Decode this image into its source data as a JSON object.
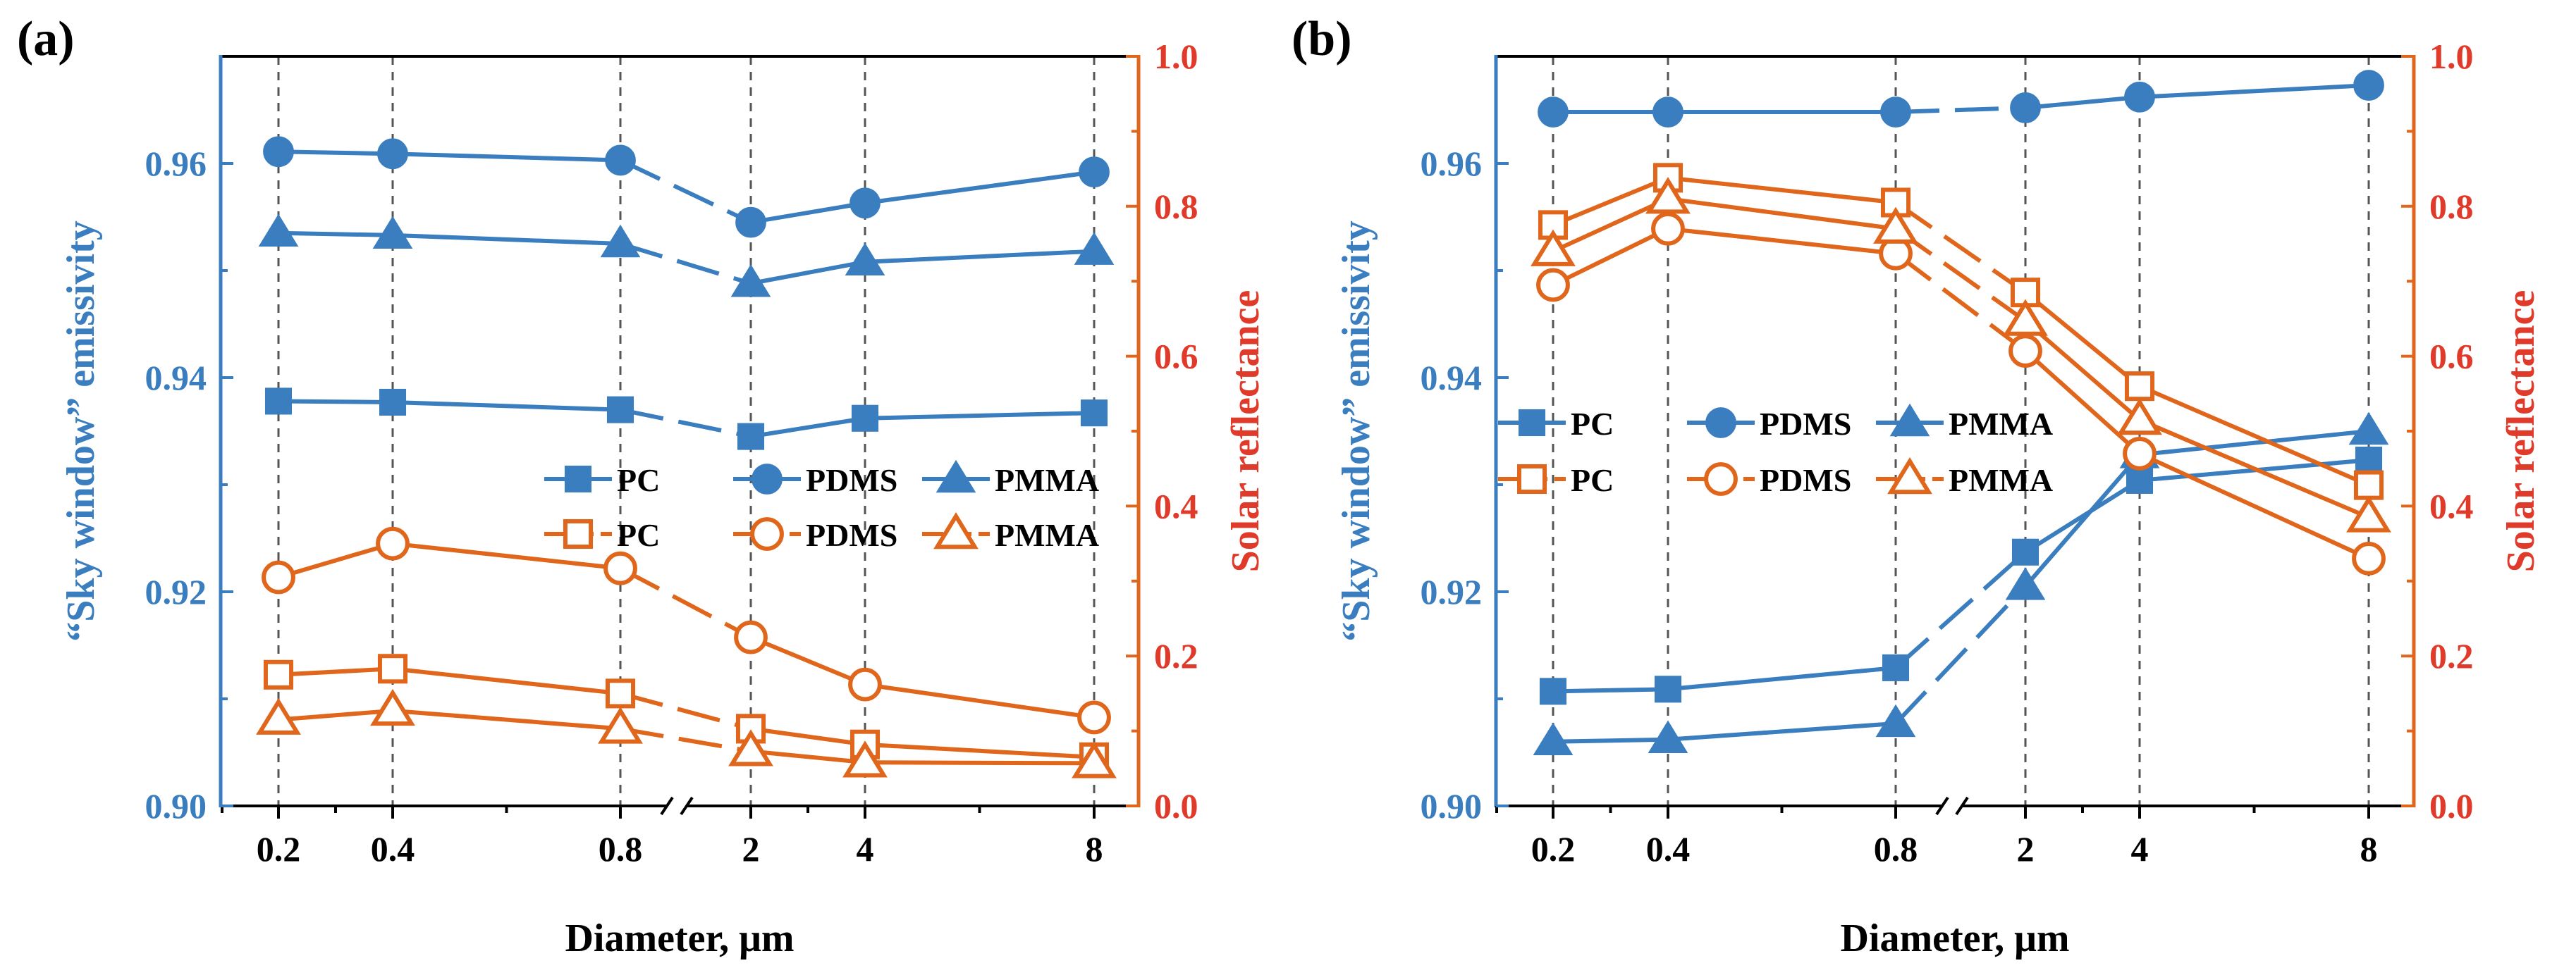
{
  "colors": {
    "emissivity": "#3a7ebf",
    "reflectance": "#e0661c",
    "right_axis": "#e03a2a",
    "grid": "#555555"
  },
  "chart_data": [
    {
      "panel_label": "(a)",
      "type": "line",
      "categories": [
        "0.2",
        "0.4",
        "0.8",
        "2",
        "4",
        "8"
      ],
      "xlabel": "Diameter, μm",
      "ylabel_left": "“Sky window” emissivity",
      "ylabel_right": "Solar reflectance",
      "ylim_left": [
        0.9,
        0.97
      ],
      "ylim_right": [
        0.0,
        1.0
      ],
      "left_ticks": [
        "0.90",
        "0.92",
        "0.94",
        "0.96"
      ],
      "right_ticks": [
        "0.0",
        "0.2",
        "0.4",
        "0.6",
        "0.8",
        "1.0"
      ],
      "legend_position": "center-right",
      "series": [
        {
          "name": "PC",
          "axis": "left",
          "marker": "square",
          "filled": true,
          "values": [
            0.9378,
            0.9377,
            0.937,
            0.9345,
            0.9362,
            0.9367
          ]
        },
        {
          "name": "PDMS",
          "axis": "left",
          "marker": "circle",
          "filled": true,
          "values": [
            0.9611,
            0.9609,
            0.9603,
            0.9545,
            0.9563,
            0.9592
          ]
        },
        {
          "name": "PMMA",
          "axis": "left",
          "marker": "triangle",
          "filled": true,
          "values": [
            0.9535,
            0.9533,
            0.9525,
            0.9488,
            0.9508,
            0.9518
          ]
        },
        {
          "name": "PC",
          "axis": "right",
          "marker": "square",
          "filled": false,
          "values": [
            0.175,
            0.183,
            0.15,
            0.103,
            0.082,
            0.065
          ]
        },
        {
          "name": "PDMS",
          "axis": "right",
          "marker": "circle",
          "filled": false,
          "values": [
            0.305,
            0.35,
            0.317,
            0.225,
            0.162,
            0.118
          ]
        },
        {
          "name": "PMMA",
          "axis": "right",
          "marker": "triangle",
          "filled": false,
          "values": [
            0.115,
            0.127,
            0.103,
            0.073,
            0.058,
            0.057
          ]
        }
      ]
    },
    {
      "panel_label": "(b)",
      "type": "line",
      "categories": [
        "0.2",
        "0.4",
        "0.8",
        "2",
        "4",
        "8"
      ],
      "xlabel": "Diameter, μm",
      "ylabel_left": "“Sky window” emissivity",
      "ylabel_right": "Solar reflectance",
      "ylim_left": [
        0.9,
        0.97
      ],
      "ylim_right": [
        0.0,
        1.0
      ],
      "left_ticks": [
        "0.90",
        "0.92",
        "0.94",
        "0.96"
      ],
      "right_ticks": [
        "0.0",
        "0.2",
        "0.4",
        "0.6",
        "0.8",
        "1.0"
      ],
      "legend_position": "center-left",
      "series": [
        {
          "name": "PC",
          "axis": "left",
          "marker": "square",
          "filled": true,
          "values": [
            0.9107,
            0.9109,
            0.9129,
            0.9237,
            0.9304,
            0.9323
          ]
        },
        {
          "name": "PDMS",
          "axis": "left",
          "marker": "circle",
          "filled": true,
          "values": [
            0.9648,
            0.9648,
            0.9648,
            0.9652,
            0.9662,
            0.9673
          ]
        },
        {
          "name": "PMMA",
          "axis": "left",
          "marker": "triangle",
          "filled": true,
          "values": [
            0.906,
            0.9062,
            0.9077,
            0.9205,
            0.9328,
            0.935
          ]
        },
        {
          "name": "PC",
          "axis": "right",
          "marker": "square",
          "filled": false,
          "values": [
            0.775,
            0.838,
            0.805,
            0.685,
            0.56,
            0.428
          ]
        },
        {
          "name": "PDMS",
          "axis": "right",
          "marker": "circle",
          "filled": false,
          "values": [
            0.695,
            0.77,
            0.737,
            0.607,
            0.47,
            0.33
          ]
        },
        {
          "name": "PMMA",
          "axis": "right",
          "marker": "triangle",
          "filled": false,
          "values": [
            0.74,
            0.81,
            0.77,
            0.647,
            0.515,
            0.385
          ]
        }
      ]
    }
  ]
}
